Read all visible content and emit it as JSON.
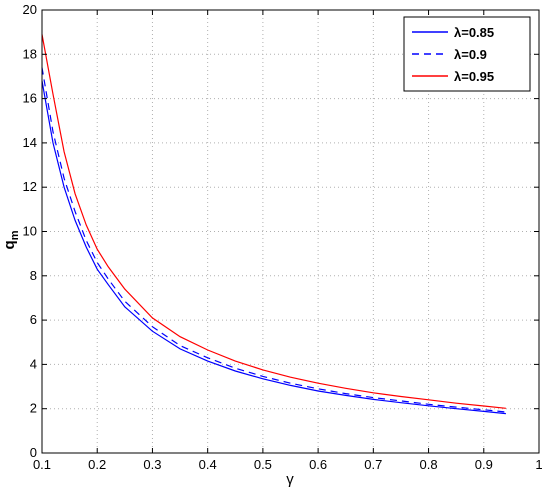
{
  "chart_data": {
    "type": "line",
    "title": "",
    "xlabel": "γ",
    "ylabel": "q",
    "ylabel_subscript": "m",
    "xlim": [
      0.1,
      1
    ],
    "ylim": [
      0,
      20
    ],
    "xticks": [
      "0.1",
      "0.2",
      "0.3",
      "0.4",
      "0.5",
      "0.6",
      "0.7",
      "0.8",
      "0.9",
      "1"
    ],
    "yticks": [
      "0",
      "2",
      "4",
      "6",
      "8",
      "10",
      "12",
      "14",
      "16",
      "18",
      "20"
    ],
    "grid": true,
    "legend_position": "top-right",
    "x": [
      0.1,
      0.12,
      0.14,
      0.16,
      0.18,
      0.2,
      0.22,
      0.25,
      0.3,
      0.35,
      0.4,
      0.45,
      0.5,
      0.55,
      0.6,
      0.65,
      0.7,
      0.75,
      0.8,
      0.85,
      0.9,
      0.94
    ],
    "series": [
      {
        "name": "λ=0.85",
        "color": "#0000ff",
        "style": "solid",
        "values": [
          16.8,
          14.0,
          12.0,
          10.5,
          9.3,
          8.3,
          7.6,
          6.6,
          5.5,
          4.7,
          4.15,
          3.7,
          3.35,
          3.05,
          2.8,
          2.6,
          2.42,
          2.27,
          2.13,
          2.0,
          1.88,
          1.78
        ]
      },
      {
        "name": "λ=0.9",
        "color": "#0000ff",
        "style": "dashed",
        "values": [
          17.4,
          14.5,
          12.4,
          10.9,
          9.6,
          8.6,
          7.85,
          6.85,
          5.7,
          4.85,
          4.3,
          3.83,
          3.46,
          3.15,
          2.9,
          2.68,
          2.5,
          2.35,
          2.2,
          2.07,
          1.95,
          1.85
        ]
      },
      {
        "name": "λ=0.95",
        "color": "#ff0000",
        "style": "solid",
        "values": [
          18.9,
          16.2,
          13.6,
          11.7,
          10.3,
          9.2,
          8.4,
          7.4,
          6.1,
          5.25,
          4.65,
          4.15,
          3.75,
          3.42,
          3.15,
          2.92,
          2.72,
          2.55,
          2.4,
          2.25,
          2.12,
          2.02
        ]
      }
    ]
  }
}
